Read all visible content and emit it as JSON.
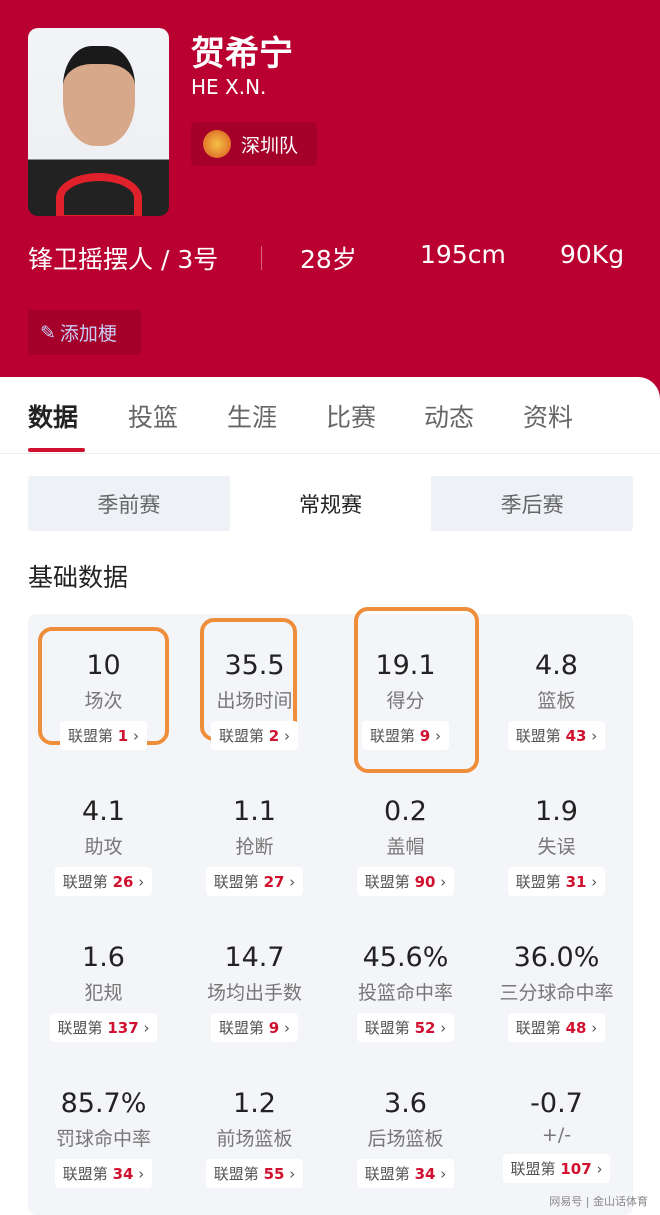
{
  "player": {
    "name": "贺希宁",
    "english_name": "HE X.N.",
    "team": "深圳队",
    "position": "锋卫摇摆人 / 3号",
    "age": "28岁",
    "height": "195cm",
    "weight": "90Kg",
    "add_tag": "添加梗"
  },
  "tabs": [
    "数据",
    "投篮",
    "生涯",
    "比赛",
    "动态",
    "资料"
  ],
  "active_tab": "数据",
  "season_types": [
    "季前赛",
    "常规赛",
    "季后赛"
  ],
  "selected_season_type": "常规赛",
  "section_title": "基础数据",
  "rank_prefix": "联盟第",
  "stats": [
    {
      "value": "10",
      "label": "场次",
      "rank": "1",
      "highlighted": true
    },
    {
      "value": "35.5",
      "label": "出场时间",
      "rank": "2",
      "highlighted": true
    },
    {
      "value": "19.1",
      "label": "得分",
      "rank": "9",
      "highlighted": true
    },
    {
      "value": "4.8",
      "label": "篮板",
      "rank": "43"
    },
    {
      "value": "4.1",
      "label": "助攻",
      "rank": "26"
    },
    {
      "value": "1.1",
      "label": "抢断",
      "rank": "27"
    },
    {
      "value": "0.2",
      "label": "盖帽",
      "rank": "90"
    },
    {
      "value": "1.9",
      "label": "失误",
      "rank": "31"
    },
    {
      "value": "1.6",
      "label": "犯规",
      "rank": "137"
    },
    {
      "value": "14.7",
      "label": "场均出手数",
      "rank": "9"
    },
    {
      "value": "45.6%",
      "label": "投篮命中率",
      "rank": "52"
    },
    {
      "value": "36.0%",
      "label": "三分球命中率",
      "rank": "48"
    },
    {
      "value": "85.7%",
      "label": "罚球命中率",
      "rank": "34"
    },
    {
      "value": "1.2",
      "label": "前场篮板",
      "rank": "55"
    },
    {
      "value": "3.6",
      "label": "后场篮板",
      "rank": "34"
    },
    {
      "value": "-0.7",
      "label": "+/-",
      "rank": "107"
    }
  ],
  "watermark": "网易号 | 金山话体育",
  "colors": {
    "brand": "#b90030",
    "highlight": "#ee8d3a",
    "rank": "#d0112f"
  }
}
